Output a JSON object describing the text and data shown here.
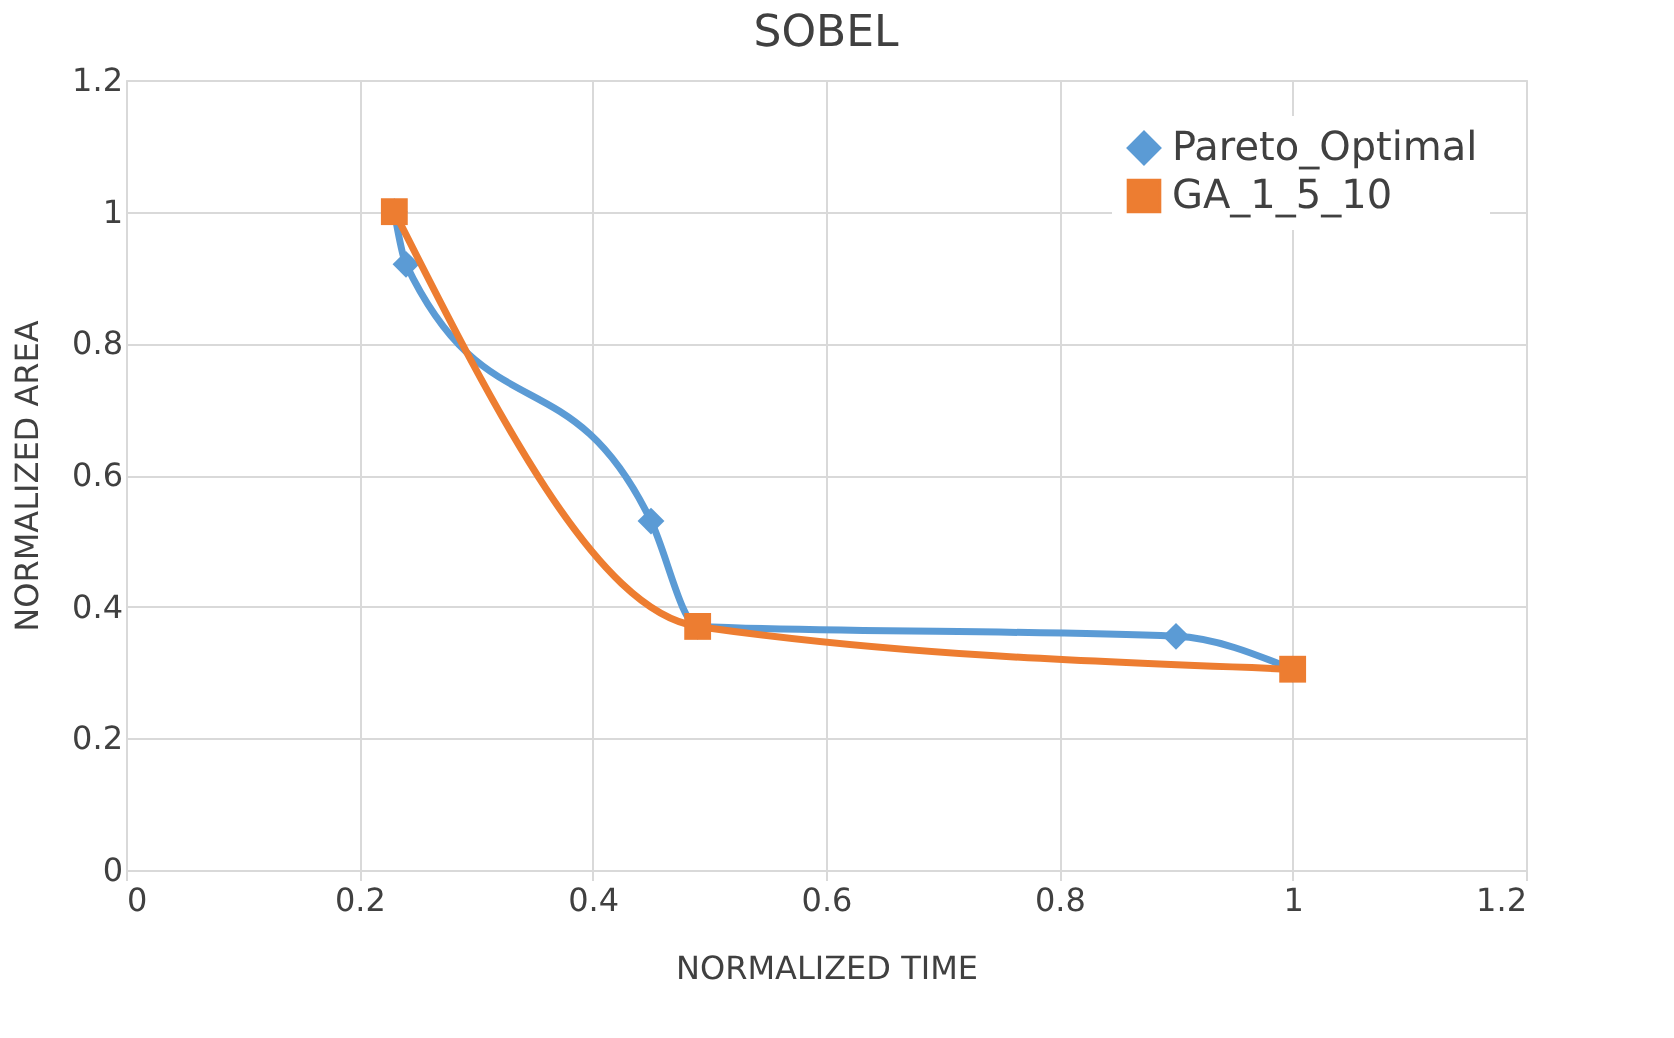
{
  "chart_data": {
    "type": "line",
    "title": "SOBEL",
    "xlabel": "NORMALIZED TIME",
    "ylabel": "NORMALIZED AREA",
    "xlim": [
      0,
      1.2
    ],
    "xticks": [
      0,
      0.2,
      0.4,
      0.6,
      0.8,
      1,
      1.2
    ],
    "ylim": [
      0,
      1.2
    ],
    "yticks": [
      0,
      0.2,
      0.4,
      0.6,
      0.8,
      1,
      1.2
    ],
    "grid": true,
    "legend": "top right",
    "line_style": "solid",
    "series": [
      {
        "name": "Pareto_Optimal",
        "color": "#5b9bd5",
        "marker": "diamond",
        "x": [
          0.23,
          0.24,
          0.45,
          0.49,
          0.9,
          1
        ],
        "values": [
          1,
          0.92,
          0.53,
          0.37,
          0.355,
          0.305
        ]
      },
      {
        "name": "GA_1_5_10",
        "color": "#ed7d31",
        "marker": "square",
        "x": [
          0.23,
          0.49,
          1
        ],
        "values": [
          1,
          0.37,
          0.305
        ]
      }
    ]
  }
}
